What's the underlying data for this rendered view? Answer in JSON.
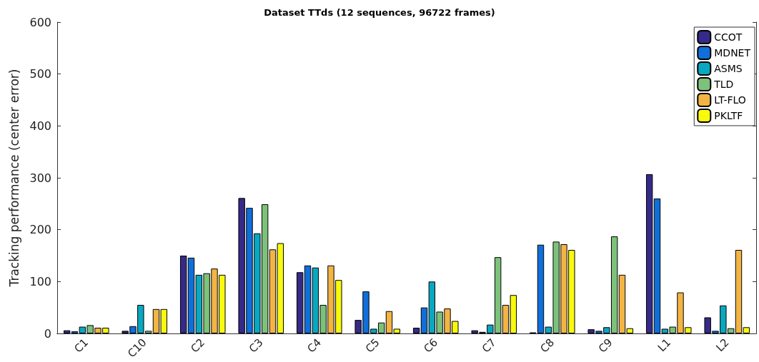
{
  "chart_data": {
    "type": "bar",
    "title": "Dataset TTds (12 sequences, 96722 frames)",
    "ylabel": "Tracking performance (center error)",
    "categories": [
      "C1",
      "C10",
      "C2",
      "C3",
      "C4",
      "C5",
      "C6",
      "C7",
      "C8",
      "C9",
      "L1",
      "L2"
    ],
    "series": [
      {
        "name": "CCOT",
        "color": "#352a87",
        "values": [
          6,
          5,
          150,
          261,
          118,
          26,
          11,
          6,
          2,
          8,
          307,
          31
        ]
      },
      {
        "name": "MDNET",
        "color": "#0f6fdb",
        "values": [
          4,
          14,
          146,
          242,
          131,
          81,
          50,
          3,
          171,
          5,
          260,
          5
        ]
      },
      {
        "name": "ASMS",
        "color": "#09a8c0",
        "values": [
          13,
          55,
          113,
          193,
          127,
          9,
          100,
          17,
          13,
          12,
          9,
          54
        ]
      },
      {
        "name": "TLD",
        "color": "#7dc27a",
        "values": [
          16,
          5,
          116,
          249,
          55,
          21,
          42,
          147,
          177,
          187,
          13,
          10
        ]
      },
      {
        "name": "LT-FLO",
        "color": "#f2b443",
        "values": [
          11,
          47,
          125,
          162,
          131,
          43,
          48,
          55,
          172,
          113,
          79,
          161
        ]
      },
      {
        "name": "PKLTF",
        "color": "#f9f90e",
        "values": [
          11,
          47,
          113,
          174,
          103,
          9,
          24,
          74,
          161,
          10,
          12,
          12
        ]
      }
    ],
    "ylim": [
      0,
      600
    ],
    "yticks": [
      0,
      100,
      200,
      300,
      400,
      500,
      600
    ],
    "grid": false,
    "legend": "top right"
  }
}
